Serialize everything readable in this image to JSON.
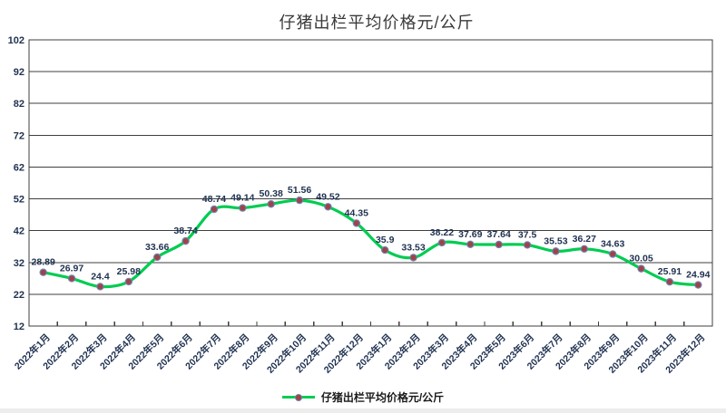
{
  "chart_data": {
    "type": "line",
    "title": "仔猪出栏平均价格元/公斤",
    "legend": "仔猪出栏平均价格元/公斤",
    "categories": [
      "2022年1月",
      "2022年2月",
      "2022年3月",
      "2022年4月",
      "2022年5月",
      "2022年6月",
      "2022年7月",
      "2022年8月",
      "2022年9月",
      "2022年10月",
      "2022年11月",
      "2022年12月",
      "2023年1月",
      "2023年2月",
      "2023年3月",
      "2023年4月",
      "2023年5月",
      "2023年6月",
      "2023年7月",
      "2023年8月",
      "2023年9月",
      "2023年10月",
      "2023年11月",
      "2023年12月"
    ],
    "values": [
      28.89,
      26.97,
      24.4,
      25.98,
      33.66,
      38.74,
      48.74,
      49.14,
      50.38,
      51.56,
      49.52,
      44.35,
      35.9,
      33.53,
      38.22,
      37.69,
      37.64,
      37.5,
      35.53,
      36.27,
      34.63,
      30.05,
      25.91,
      24.94
    ],
    "ylim": [
      12,
      102
    ],
    "yticks": [
      12,
      22,
      32,
      42,
      52,
      62,
      72,
      82,
      92,
      102
    ],
    "grid": "horizontal",
    "line_smoothing": true,
    "legend_position": "bottom",
    "colors": {
      "line": "#00cc52",
      "marker_fill": "#9e4347",
      "marker_stroke": "#7181ac",
      "data_label": "#1f3150",
      "axis_text": "#1f3150",
      "grid": "#3f3f3f",
      "title": "#3a3a3a"
    }
  }
}
